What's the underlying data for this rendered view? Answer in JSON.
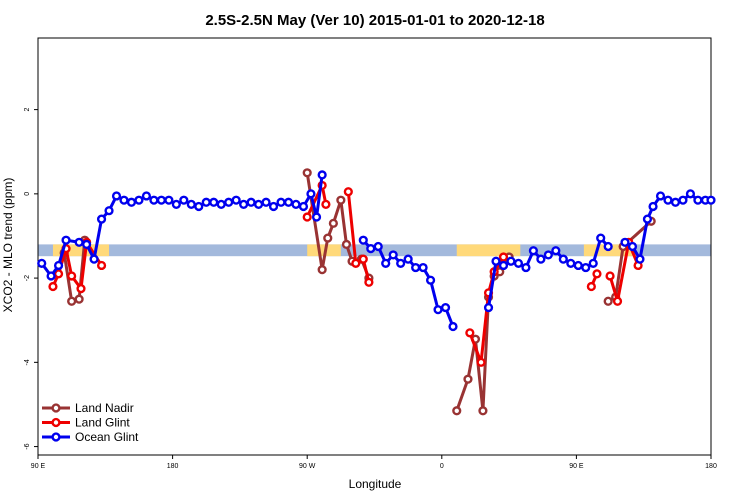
{
  "chart_data": {
    "type": "line",
    "title": "2.5S-2.5N May (Ver 10)   2015-01-01 to 2020-12-18",
    "xlabel": "Longitude",
    "ylabel": "XCO2 - MLO trend (ppm)",
    "xlim": [
      0,
      360
    ],
    "ylim": [
      -6.2,
      3.7
    ],
    "x_ticks": [
      {
        "value": 0,
        "label": "90 E"
      },
      {
        "value": 72,
        "label": "180"
      },
      {
        "value": 144,
        "label": "90 W"
      },
      {
        "value": 216,
        "label": "0"
      },
      {
        "value": 288,
        "label": "90 E"
      },
      {
        "value": 360,
        "label": "180"
      }
    ],
    "y_ticks": [
      {
        "value": 2,
        "label": "2"
      },
      {
        "value": 0,
        "label": "0"
      },
      {
        "value": -2,
        "label": "-2"
      },
      {
        "value": -4,
        "label": "-4"
      },
      {
        "value": -6,
        "label": "-6"
      }
    ],
    "colors": {
      "land_nadir": "#993333",
      "land_glint": "#ee0000",
      "ocean_glint": "#0000ee",
      "ocean_band": "#a3b9dc",
      "land_band": "#ffd97a",
      "axis": "#000000"
    },
    "surface_band": {
      "y_top": -1.2,
      "y_bottom": -1.48,
      "land_segments": [
        [
          8,
          38
        ],
        [
          144,
          162
        ],
        [
          224,
          258
        ],
        [
          292,
          318
        ]
      ]
    },
    "legend": {
      "position": "bottom-left",
      "entries": [
        {
          "name": "Land Nadir",
          "series": 0
        },
        {
          "name": "Land Glint",
          "series": 1
        },
        {
          "name": "Ocean Glint",
          "series": 2
        }
      ]
    },
    "series": [
      {
        "name": "Land Nadir",
        "color_key": "land_nadir",
        "segments": [
          [
            [
              14,
              -1.4
            ],
            [
              18,
              -2.55
            ],
            [
              22,
              -2.5
            ],
            [
              25,
              -1.1
            ]
          ],
          [
            [
              144,
              0.5
            ],
            [
              152,
              -1.8
            ],
            [
              155,
              -1.05
            ],
            [
              158,
              -0.7
            ],
            [
              162,
              -0.15
            ],
            [
              165,
              -1.2
            ],
            [
              168,
              -1.6
            ],
            [
              173,
              -1.55
            ],
            [
              177,
              -2.0
            ]
          ],
          [
            [
              224,
              -5.15
            ],
            [
              230,
              -4.4
            ],
            [
              234,
              -3.45
            ],
            [
              238,
              -5.15
            ],
            [
              241,
              -2.45
            ],
            [
              244,
              -1.95
            ],
            [
              247,
              -1.85
            ],
            [
              252,
              -1.5
            ]
          ],
          [
            [
              305,
              -2.55
            ],
            [
              309,
              -2.45
            ],
            [
              313,
              -1.25
            ],
            [
              328,
              -0.65
            ]
          ]
        ]
      },
      {
        "name": "Land Glint",
        "color_key": "land_glint",
        "segments": [
          [
            [
              8,
              -2.2
            ],
            [
              11,
              -1.9
            ],
            [
              15,
              -1.3
            ],
            [
              18,
              -1.95
            ],
            [
              23,
              -2.25
            ],
            [
              26,
              -1.15
            ],
            [
              34,
              -1.7
            ]
          ],
          [
            [
              144,
              -0.55
            ],
            [
              152,
              0.2
            ],
            [
              154,
              -0.25
            ]
          ],
          [
            [
              166,
              0.05
            ],
            [
              170,
              -1.65
            ],
            [
              174,
              -1.55
            ],
            [
              177,
              -2.1
            ]
          ],
          [
            [
              231,
              -3.3
            ],
            [
              237,
              -4.0
            ],
            [
              241,
              -2.35
            ],
            [
              244,
              -1.85
            ],
            [
              249,
              -1.5
            ]
          ],
          [
            [
              296,
              -2.2
            ],
            [
              299,
              -1.9
            ]
          ],
          [
            [
              306,
              -1.95
            ],
            [
              310,
              -2.55
            ],
            [
              316,
              -1.15
            ],
            [
              321,
              -1.7
            ]
          ]
        ]
      },
      {
        "name": "Ocean Glint",
        "color_key": "ocean_glint",
        "segments": [
          [
            [
              2,
              -1.65
            ],
            [
              7,
              -1.95
            ],
            [
              11,
              -1.7
            ],
            [
              15,
              -1.1
            ],
            [
              22,
              -1.15
            ],
            [
              26,
              -1.2
            ],
            [
              30,
              -1.55
            ],
            [
              34,
              -0.6
            ],
            [
              38,
              -0.4
            ],
            [
              42,
              -0.05
            ],
            [
              46,
              -0.15
            ],
            [
              50,
              -0.2
            ],
            [
              54,
              -0.15
            ],
            [
              58,
              -0.05
            ],
            [
              62,
              -0.15
            ],
            [
              66,
              -0.15
            ],
            [
              70,
              -0.15
            ],
            [
              74,
              -0.25
            ],
            [
              78,
              -0.15
            ],
            [
              82,
              -0.25
            ],
            [
              86,
              -0.3
            ],
            [
              90,
              -0.2
            ],
            [
              94,
              -0.2
            ],
            [
              98,
              -0.25
            ],
            [
              102,
              -0.2
            ],
            [
              106,
              -0.15
            ],
            [
              110,
              -0.25
            ],
            [
              114,
              -0.2
            ],
            [
              118,
              -0.25
            ],
            [
              122,
              -0.2
            ],
            [
              126,
              -0.3
            ],
            [
              130,
              -0.2
            ],
            [
              134,
              -0.2
            ],
            [
              138,
              -0.25
            ],
            [
              142,
              -0.3
            ],
            [
              146,
              0.0
            ],
            [
              149,
              -0.55
            ],
            [
              152,
              0.45
            ]
          ],
          [
            [
              174,
              -1.1
            ],
            [
              178,
              -1.3
            ],
            [
              182,
              -1.25
            ],
            [
              186,
              -1.65
            ],
            [
              190,
              -1.45
            ],
            [
              194,
              -1.65
            ],
            [
              198,
              -1.55
            ],
            [
              202,
              -1.75
            ],
            [
              206,
              -1.75
            ],
            [
              210,
              -2.05
            ],
            [
              214,
              -2.75
            ],
            [
              218,
              -2.7
            ],
            [
              222,
              -3.15
            ]
          ],
          [
            [
              241,
              -2.7
            ],
            [
              245,
              -1.6
            ],
            [
              249,
              -1.7
            ],
            [
              253,
              -1.6
            ],
            [
              257,
              -1.65
            ],
            [
              261,
              -1.75
            ],
            [
              265,
              -1.35
            ],
            [
              269,
              -1.55
            ],
            [
              273,
              -1.45
            ],
            [
              277,
              -1.35
            ],
            [
              281,
              -1.55
            ],
            [
              285,
              -1.65
            ],
            [
              289,
              -1.7
            ],
            [
              293,
              -1.75
            ],
            [
              297,
              -1.65
            ],
            [
              301,
              -1.05
            ],
            [
              305,
              -1.25
            ]
          ],
          [
            [
              314,
              -1.15
            ],
            [
              318,
              -1.25
            ],
            [
              322,
              -1.55
            ],
            [
              326,
              -0.6
            ],
            [
              329,
              -0.3
            ],
            [
              333,
              -0.05
            ],
            [
              337,
              -0.15
            ],
            [
              341,
              -0.2
            ],
            [
              345,
              -0.15
            ],
            [
              349,
              0.0
            ],
            [
              353,
              -0.15
            ],
            [
              357,
              -0.15
            ],
            [
              360,
              -0.15
            ]
          ]
        ]
      }
    ]
  }
}
